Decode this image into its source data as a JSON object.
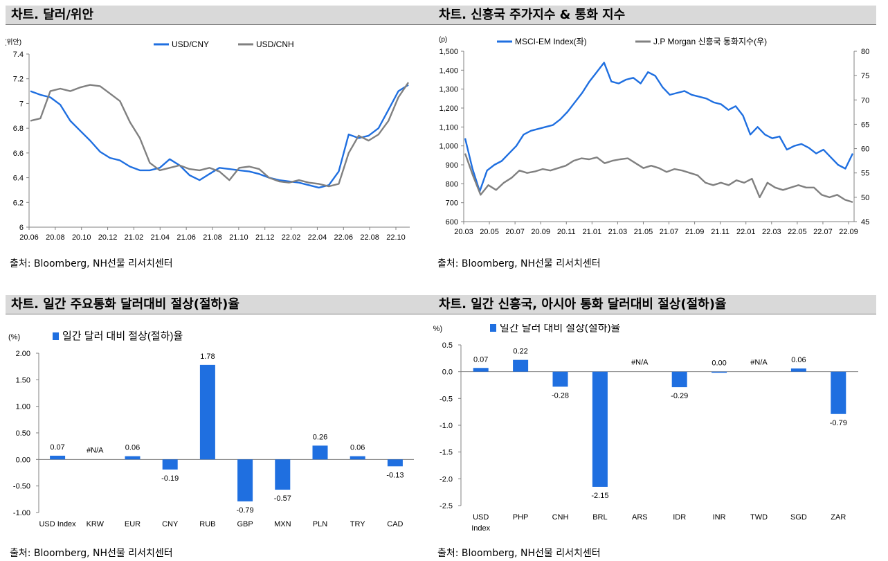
{
  "panels": [
    {
      "title": "차트. 달러/위안",
      "source": "출처: Bloomberg, NH선물 리서치센터"
    },
    {
      "title": "차트. 신흥국 주가지수 & 통화 지수",
      "source": "출처: Bloomberg, NH선물 리서치센터"
    },
    {
      "title": "차트. 일간 주요통화 달러대비 절상(절하)율",
      "source": "출처: Bloomberg, NH선물 리서치센터"
    },
    {
      "title": "차트. 일간 신흥국, 아시아 통화 달러대비 절상(절하)율",
      "source": "출처: Bloomberg, NH선물 리서치센터"
    }
  ],
  "chart_data": [
    {
      "type": "line",
      "ylabel": "(위안)",
      "ylim": [
        6,
        7.4
      ],
      "yticks": [
        "7.4",
        "7.2",
        "7",
        "6.8",
        "6.6",
        "6.4",
        "6.2",
        "6"
      ],
      "xticks": [
        "20.06",
        "20.08",
        "20.10",
        "20.12",
        "21.02",
        "21.04",
        "21.06",
        "21.08",
        "21.10",
        "21.12",
        "22.02",
        "22.04",
        "22.06",
        "22.08",
        "22.10"
      ],
      "legend_position": "top-center",
      "series": [
        {
          "name": "USD/CNY",
          "color": "#1f6fe0",
          "values": [
            7.1,
            7.07,
            7.05,
            6.99,
            6.86,
            6.78,
            6.7,
            6.61,
            6.56,
            6.54,
            6.49,
            6.46,
            6.46,
            6.48,
            6.55,
            6.5,
            6.42,
            6.38,
            6.43,
            6.48,
            6.47,
            6.46,
            6.45,
            6.43,
            6.4,
            6.38,
            6.37,
            6.36,
            6.34,
            6.32,
            6.34,
            6.45,
            6.75,
            6.72,
            6.74,
            6.8,
            6.95,
            7.1,
            7.15
          ]
        },
        {
          "name": "USD/CNH",
          "color": "#808080",
          "values": [
            6.86,
            6.88,
            7.1,
            7.12,
            7.1,
            7.13,
            7.15,
            7.14,
            7.08,
            7.02,
            6.85,
            6.72,
            6.52,
            6.46,
            6.48,
            6.5,
            6.47,
            6.46,
            6.48,
            6.45,
            6.38,
            6.48,
            6.49,
            6.47,
            6.4,
            6.37,
            6.36,
            6.38,
            6.36,
            6.35,
            6.33,
            6.35,
            6.6,
            6.74,
            6.7,
            6.75,
            6.86,
            7.05,
            7.17
          ]
        }
      ]
    },
    {
      "type": "line",
      "ylabel": "(p)",
      "ylim": [
        600,
        1500
      ],
      "y2lim": [
        45,
        80
      ],
      "yticks": [
        "1,500",
        "1,400",
        "1,300",
        "1,200",
        "1,100",
        "1,000",
        "900",
        "800",
        "700",
        "600"
      ],
      "y2ticks": [
        "80",
        "75",
        "70",
        "65",
        "60",
        "55",
        "50",
        "45"
      ],
      "xticks": [
        "20.03",
        "20.05",
        "20.07",
        "20.09",
        "20.11",
        "21.01",
        "21.03",
        "21.05",
        "21.07",
        "21.09",
        "21.11",
        "22.01",
        "22.03",
        "22.05",
        "22.07",
        "22.09"
      ],
      "legend_position": "top-center",
      "series": [
        {
          "name": "MSCI-EM Index(좌)",
          "axis": "left",
          "color": "#1f6fe0",
          "values": [
            1040,
            880,
            760,
            870,
            900,
            920,
            960,
            1000,
            1060,
            1080,
            1090,
            1100,
            1110,
            1140,
            1180,
            1230,
            1280,
            1340,
            1390,
            1440,
            1340,
            1330,
            1350,
            1360,
            1330,
            1390,
            1370,
            1310,
            1270,
            1280,
            1290,
            1270,
            1260,
            1250,
            1230,
            1220,
            1190,
            1210,
            1160,
            1060,
            1100,
            1060,
            1040,
            1050,
            980,
            1000,
            1010,
            990,
            960,
            980,
            940,
            900,
            880,
            960
          ]
        },
        {
          "name": "J.P Morgan 신흥국 통화지수(우)",
          "axis": "right",
          "color": "#808080",
          "values": [
            59.0,
            54.5,
            50.5,
            52.5,
            51.5,
            53.0,
            54.0,
            55.5,
            55.0,
            55.3,
            55.8,
            55.5,
            56.0,
            56.5,
            57.5,
            58.0,
            57.8,
            58.2,
            57.0,
            57.5,
            57.8,
            58.0,
            57.0,
            56.0,
            56.5,
            56.0,
            55.2,
            55.8,
            55.5,
            55.0,
            54.5,
            53.0,
            52.5,
            53.0,
            52.5,
            53.5,
            53.0,
            53.8,
            50.0,
            53.0,
            52.0,
            51.5,
            52.0,
            52.5,
            52.0,
            52.0,
            50.5,
            50.0,
            50.5,
            49.5,
            49.0
          ]
        }
      ]
    },
    {
      "type": "bar",
      "ylabel": "(%)",
      "legend": "일간 달러 대비 절상(절하)율",
      "ylim": [
        -1.0,
        2.0
      ],
      "yticks": [
        "2.00",
        "1.50",
        "1.00",
        "0.50",
        "0.00",
        "-0.50",
        "-1.00"
      ],
      "categories": [
        "USD Index",
        "KRW",
        "EUR",
        "CNY",
        "RUB",
        "GBP",
        "MXN",
        "PLN",
        "TRY",
        "CAD"
      ],
      "values": [
        0.07,
        null,
        0.06,
        -0.19,
        1.78,
        -0.79,
        -0.57,
        0.26,
        0.06,
        -0.13
      ],
      "labels": [
        "0.07",
        "#N/A",
        "0.06",
        "-0.19",
        "1.78",
        "-0.79",
        "-0.57",
        "0.26",
        "0.06",
        "-0.13"
      ],
      "color": "#1f6fe0"
    },
    {
      "type": "bar",
      "ylabel": "(%)",
      "legend": "일간 달러 대비 절상(절하)율",
      "ylim": [
        -2.5,
        0.5
      ],
      "yticks": [
        "0.5",
        "0.0",
        "-0.5",
        "-1.0",
        "-1.5",
        "-2.0",
        "-2.5"
      ],
      "categories": [
        "USD Index",
        "PHP",
        "CNH",
        "BRL",
        "ARS",
        "IDR",
        "INR",
        "TWD",
        "SGD",
        "ZAR"
      ],
      "values": [
        0.07,
        0.22,
        -0.28,
        -2.15,
        null,
        -0.29,
        0.0,
        null,
        0.06,
        -0.79
      ],
      "labels": [
        "0.07",
        "0.22",
        "-0.28",
        "-2.15",
        "#N/A",
        "-0.29",
        "0.00",
        "#N/A",
        "0.06",
        "-0.79"
      ],
      "color": "#1f6fe0"
    }
  ]
}
